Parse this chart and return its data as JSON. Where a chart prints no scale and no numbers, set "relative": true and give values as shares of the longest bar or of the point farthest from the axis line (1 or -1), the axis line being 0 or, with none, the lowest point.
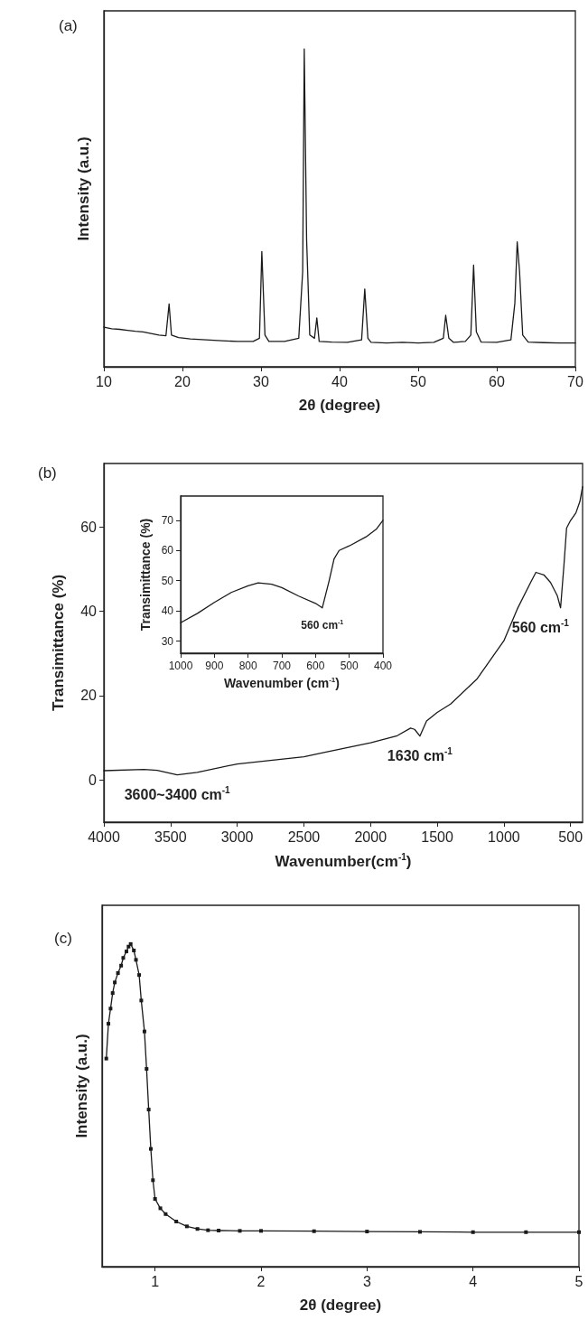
{
  "chart_data": [
    {
      "type": "line",
      "title": "(a)",
      "xlabel": "2θ (degree)",
      "ylabel": "Intensity (a.u.)",
      "relative": true,
      "tick_labels": "x",
      "marker": "none",
      "xlim": [
        10,
        70
      ],
      "xticks": [
        10,
        20,
        30,
        40,
        50,
        60,
        70
      ],
      "grid": false,
      "series": [
        {
          "color": "#1a1a1a",
          "x": [
            10,
            11,
            12,
            13,
            14,
            15,
            16,
            17,
            17.9,
            18.3,
            18.6,
            19.5,
            21,
            23,
            25,
            27,
            29,
            29.8,
            30.1,
            30.5,
            31,
            33,
            34.8,
            35.3,
            35.5,
            35.8,
            36.2,
            36.8,
            37.1,
            37.4,
            39,
            41,
            42.8,
            43.2,
            43.6,
            44,
            46,
            48,
            50,
            52,
            53.2,
            53.5,
            53.9,
            54.5,
            56,
            56.7,
            57.05,
            57.4,
            58,
            60,
            61.8,
            62.3,
            62.6,
            62.9,
            63.3,
            64,
            66,
            68,
            70
          ],
          "values": [
            0.125,
            0.12,
            0.118,
            0.115,
            0.112,
            0.11,
            0.105,
            0.1,
            0.098,
            0.198,
            0.1,
            0.092,
            0.088,
            0.085,
            0.082,
            0.08,
            0.08,
            0.09,
            0.363,
            0.1,
            0.08,
            0.08,
            0.09,
            0.3,
            1.0,
            0.4,
            0.1,
            0.09,
            0.154,
            0.08,
            0.078,
            0.077,
            0.085,
            0.245,
            0.09,
            0.077,
            0.075,
            0.077,
            0.075,
            0.077,
            0.09,
            0.162,
            0.09,
            0.077,
            0.08,
            0.1,
            0.32,
            0.11,
            0.078,
            0.077,
            0.085,
            0.2,
            0.393,
            0.3,
            0.1,
            0.078,
            0.076,
            0.075,
            0.075
          ]
        }
      ]
    },
    {
      "type": "line",
      "title": "(b)",
      "xlabel": "Wavenumber(cm$^{-1}$)",
      "ylabel": "Transimittance (%)",
      "marker": "none",
      "xlim": [
        4000,
        410
      ],
      "xticks": [
        4000,
        3500,
        3000,
        2500,
        2000,
        1500,
        1000,
        500
      ],
      "ylim": [
        -10,
        75
      ],
      "yticks": [
        0,
        20,
        40,
        60
      ],
      "grid": false,
      "annotations": [
        {
          "text": "3600~3400 cm$^{-1}$",
          "x": 3450,
          "y": 1.2
        },
        {
          "text": "1630 cm$^{-1}$",
          "x": 1630,
          "y": 10.4
        },
        {
          "text": "560 cm$^{-1}$",
          "x": 575,
          "y": 40.8
        }
      ],
      "series": [
        {
          "color": "#1a1a1a",
          "x": [
            4000,
            3700,
            3600,
            3450,
            3300,
            3000,
            2500,
            2350,
            2000,
            1800,
            1700,
            1670,
            1630,
            1580,
            1500,
            1400,
            1200,
            1100,
            1000,
            900,
            800,
            760,
            700,
            650,
            600,
            575,
            550,
            530,
            500,
            460,
            430,
            410
          ],
          "values": [
            2.2,
            2.5,
            2.3,
            1.2,
            1.8,
            3.8,
            5.5,
            6.5,
            8.8,
            10.5,
            12.3,
            12.0,
            10.4,
            14,
            16,
            18,
            24,
            28.5,
            33,
            40.5,
            46.8,
            49.2,
            48.6,
            46.8,
            43.7,
            40.8,
            50.8,
            59.7,
            61.5,
            63.3,
            66,
            69.5
          ]
        }
      ]
    },
    {
      "type": "line",
      "xlabel": "Wavenumber (cm$^{-1}$)",
      "ylabel": "Transimittance (%)",
      "marker": "none",
      "xlim": [
        1000,
        400
      ],
      "xticks": [
        1000,
        900,
        800,
        700,
        600,
        500,
        400
      ],
      "ylim": [
        26,
        78
      ],
      "yticks": [
        30,
        40,
        50,
        60,
        70
      ],
      "grid": false,
      "annotations": [
        {
          "text": "560 cm$^{-1}$",
          "x": 580,
          "y": 41
        }
      ],
      "series": [
        {
          "color": "#1a1a1a",
          "x": [
            1000,
            950,
            900,
            850,
            800,
            770,
            730,
            700,
            650,
            600,
            580,
            560,
            545,
            530,
            500,
            450,
            420,
            400
          ],
          "values": [
            36.1,
            39.2,
            42.8,
            46.1,
            48.3,
            49.3,
            48.8,
            47.7,
            44.9,
            42.5,
            41,
            49.8,
            57.2,
            60,
            61.5,
            64.5,
            67,
            70
          ]
        }
      ]
    },
    {
      "type": "line",
      "title": "(c)",
      "xlabel": "2θ (degree)",
      "ylabel": "Intensity (a.u.)",
      "relative": true,
      "tick_labels": "x",
      "marker": "square",
      "xlim": [
        0.5,
        5
      ],
      "xticks": [
        1,
        2,
        3,
        4,
        5
      ],
      "grid": false,
      "series": [
        {
          "color": "#1a1a1a",
          "x": [
            0.54,
            0.56,
            0.58,
            0.6,
            0.62,
            0.65,
            0.68,
            0.7,
            0.73,
            0.75,
            0.77,
            0.8,
            0.82,
            0.85,
            0.87,
            0.9,
            0.92,
            0.94,
            0.96,
            0.98,
            1.0,
            1.05,
            1.1,
            1.2,
            1.3,
            1.4,
            1.5,
            1.6,
            1.8,
            2,
            2.5,
            3,
            3.5,
            4,
            4.5,
            5
          ],
          "values": [
            0.645,
            0.753,
            0.8,
            0.848,
            0.881,
            0.91,
            0.933,
            0.957,
            0.977,
            0.992,
            1.0,
            0.98,
            0.951,
            0.904,
            0.825,
            0.729,
            0.613,
            0.487,
            0.365,
            0.268,
            0.21,
            0.181,
            0.163,
            0.14,
            0.125,
            0.117,
            0.113,
            0.112,
            0.111,
            0.111,
            0.11,
            0.109,
            0.108,
            0.107,
            0.107,
            0.107
          ]
        }
      ]
    }
  ]
}
